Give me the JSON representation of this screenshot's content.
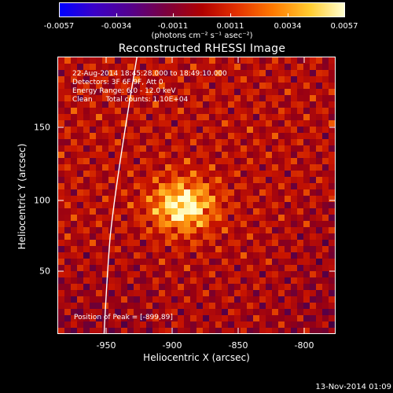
{
  "colorbar": {
    "ticks": [
      "-0.0057",
      "-0.0034",
      "-0.0011",
      "0.0011",
      "0.0034",
      "0.0057"
    ],
    "unit_label": "(photons cm⁻² s⁻¹ asec⁻²)"
  },
  "title": "Reconstructed RHESSI Image",
  "info": {
    "time": "22-Aug-2014 18:45:28.000 to 18:49:10.000",
    "detectors": "Detectors: 3F 6F 9F, Att 0",
    "energy": "Energy Range: 6.0 - 12.0 keV",
    "clean": "Clean      Total counts: 1.10E+04",
    "peak": "Position of Peak = [-899,89]"
  },
  "axes": {
    "xlabel": "Heliocentric X (arcsec)",
    "ylabel": "Heliocentric Y (arcsec)",
    "xticks": [
      "-950",
      "-900",
      "-850",
      "-800"
    ],
    "yticks": [
      "50",
      "100",
      "150"
    ]
  },
  "timestamp": "13-Nov-2014 01:09",
  "colors": {
    "limb": "#ffffff"
  }
}
